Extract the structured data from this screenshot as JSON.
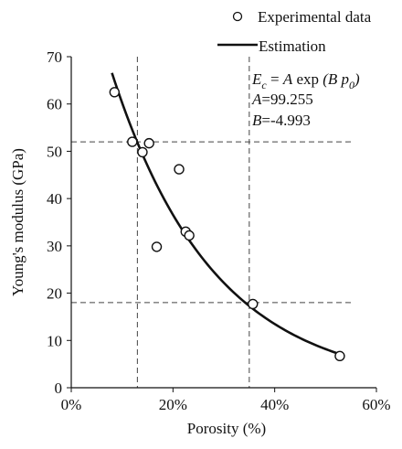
{
  "chart_data": {
    "type": "scatter",
    "xlabel": "Porosity (%)",
    "ylabel": "Young's modulus (GPa)",
    "xlim": [
      0,
      0.6
    ],
    "ylim": [
      0,
      70
    ],
    "xticks": [
      0,
      0.2,
      0.4,
      0.6
    ],
    "xtick_labels": [
      "0%",
      "20%",
      "40%",
      "60%"
    ],
    "yticks": [
      0,
      10,
      20,
      30,
      40,
      50,
      60,
      70
    ],
    "ytick_labels": [
      "0",
      "10",
      "20",
      "30",
      "40",
      "50",
      "60",
      "70"
    ],
    "grid": false,
    "legend_position": "top-right",
    "series": [
      {
        "name": "Experimental data",
        "kind": "scatter",
        "marker": "open-circle",
        "x": [
          0.085,
          0.12,
          0.14,
          0.153,
          0.168,
          0.212,
          0.225,
          0.232,
          0.357,
          0.528
        ],
        "y": [
          62.5,
          52.0,
          49.8,
          51.7,
          29.8,
          46.2,
          33.0,
          32.2,
          17.7,
          6.7
        ]
      },
      {
        "name": "Estimation",
        "kind": "line",
        "formula": {
          "A": 99.255,
          "B": -4.993
        },
        "x_range": [
          0.08,
          0.535
        ]
      }
    ],
    "reference_lines": {
      "vertical_x": [
        0.13,
        0.35
      ],
      "horizontal_y": [
        52,
        18
      ]
    },
    "annotation": {
      "formula_prefix": "E",
      "formula_sub": "c",
      "formula_mid": " = ",
      "formula_a": "A",
      "formula_exp": " exp ",
      "formula_args": "(B p",
      "formula_args_sub": "0",
      "formula_close": ")",
      "a_label": "A",
      "a_value": "=99.255",
      "b_label": "B",
      "b_value": "=-4.993"
    },
    "colors": {
      "axis": "#111111",
      "marks": "#111111",
      "ref": "#444444"
    }
  }
}
